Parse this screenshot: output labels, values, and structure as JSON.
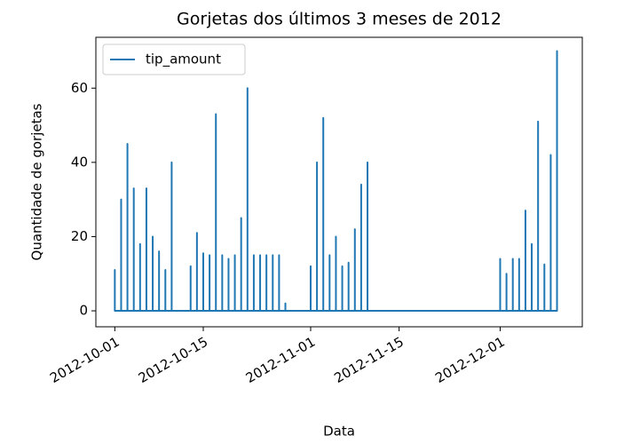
{
  "chart_data": {
    "type": "line",
    "title": "Gorjetas dos últimos 3 meses de 2012",
    "xlabel": "Data",
    "ylabel": "Quantidade de gorjetas",
    "x": [
      "2012-10-01",
      "2012-10-01",
      "2012-10-01",
      "2012-10-02",
      "2012-10-02",
      "2012-10-02",
      "2012-10-03",
      "2012-10-03",
      "2012-10-03",
      "2012-10-04",
      "2012-10-04",
      "2012-10-04",
      "2012-10-05",
      "2012-10-05",
      "2012-10-05",
      "2012-10-06",
      "2012-10-06",
      "2012-10-06",
      "2012-10-07",
      "2012-10-07",
      "2012-10-07",
      "2012-10-08",
      "2012-10-08",
      "2012-10-08",
      "2012-10-09",
      "2012-10-09",
      "2012-10-09",
      "2012-10-10",
      "2012-10-10",
      "2012-10-10",
      "2012-10-13",
      "2012-10-13",
      "2012-10-13",
      "2012-10-14",
      "2012-10-14",
      "2012-10-14",
      "2012-10-15",
      "2012-10-15",
      "2012-10-15",
      "2012-10-16",
      "2012-10-16",
      "2012-10-16",
      "2012-10-17",
      "2012-10-17",
      "2012-10-17",
      "2012-10-18",
      "2012-10-18",
      "2012-10-18",
      "2012-10-19",
      "2012-10-19",
      "2012-10-19",
      "2012-10-20",
      "2012-10-20",
      "2012-10-20",
      "2012-10-21",
      "2012-10-21",
      "2012-10-21",
      "2012-10-22",
      "2012-10-22",
      "2012-10-22",
      "2012-10-23",
      "2012-10-23",
      "2012-10-23",
      "2012-10-24",
      "2012-10-24",
      "2012-10-24",
      "2012-10-25",
      "2012-10-25",
      "2012-10-25",
      "2012-10-26",
      "2012-10-26",
      "2012-10-26",
      "2012-10-27",
      "2012-10-27",
      "2012-10-27",
      "2012-10-28",
      "2012-10-28",
      "2012-10-28",
      "2012-11-01",
      "2012-11-01",
      "2012-11-01",
      "2012-11-02",
      "2012-11-02",
      "2012-11-02",
      "2012-11-03",
      "2012-11-03",
      "2012-11-03",
      "2012-11-04",
      "2012-11-04",
      "2012-11-04",
      "2012-11-05",
      "2012-11-05",
      "2012-11-05",
      "2012-11-06",
      "2012-11-06",
      "2012-11-06",
      "2012-11-07",
      "2012-11-07",
      "2012-11-07",
      "2012-11-08",
      "2012-11-08",
      "2012-11-08",
      "2012-11-09",
      "2012-11-09",
      "2012-11-09",
      "2012-11-10",
      "2012-11-10",
      "2012-11-10",
      "2012-12-01",
      "2012-12-01",
      "2012-12-01",
      "2012-12-02",
      "2012-12-02",
      "2012-12-02",
      "2012-12-03",
      "2012-12-03",
      "2012-12-03",
      "2012-12-04",
      "2012-12-04",
      "2012-12-04",
      "2012-12-05",
      "2012-12-05",
      "2012-12-05",
      "2012-12-06",
      "2012-12-06",
      "2012-12-06",
      "2012-12-07",
      "2012-12-07",
      "2012-12-07",
      "2012-12-08",
      "2012-12-08",
      "2012-12-08",
      "2012-12-09",
      "2012-12-09",
      "2012-12-09",
      "2012-12-10",
      "2012-12-10",
      "2012-12-10"
    ],
    "series": [
      {
        "name": "tip_amount",
        "color": "#1f77b4",
        "values": [
          0,
          11,
          0,
          0,
          30,
          0,
          0,
          45,
          0,
          0,
          33,
          0,
          0,
          18,
          0,
          0,
          33,
          0,
          0,
          20,
          0,
          0,
          16,
          0,
          0,
          11,
          0,
          0,
          40,
          0,
          0,
          12,
          0,
          0,
          21,
          0,
          0,
          15.5,
          0,
          0,
          15,
          0,
          0,
          53,
          0,
          0,
          15,
          0,
          0,
          14,
          0,
          0,
          15,
          0,
          0,
          25,
          0,
          0,
          60,
          0,
          0,
          15,
          0,
          0,
          15,
          0,
          0,
          15,
          0,
          0,
          15,
          0,
          0,
          15,
          0,
          0,
          2,
          0,
          0,
          12,
          0,
          0,
          40,
          0,
          0,
          52,
          0,
          0,
          15,
          0,
          0,
          20,
          0,
          0,
          12,
          0,
          0,
          13,
          0,
          0,
          22,
          0,
          0,
          34,
          0,
          0,
          40,
          0,
          0,
          14,
          0,
          0,
          10,
          0,
          0,
          14,
          0,
          0,
          14,
          0,
          0,
          27,
          0,
          0,
          18,
          0,
          0,
          51,
          0,
          0,
          12.5,
          0,
          0,
          42,
          0,
          0,
          70,
          0
        ]
      }
    ],
    "xlim": [
      "2012-09-28",
      "2012-12-14"
    ],
    "xticks": [
      "2012-10-01",
      "2012-10-15",
      "2012-11-01",
      "2012-11-15",
      "2012-12-01"
    ],
    "ylim": [
      -4.3,
      73.7
    ],
    "yticks": [
      0,
      20,
      40,
      60
    ],
    "legend": "upper left",
    "grid": false
  }
}
